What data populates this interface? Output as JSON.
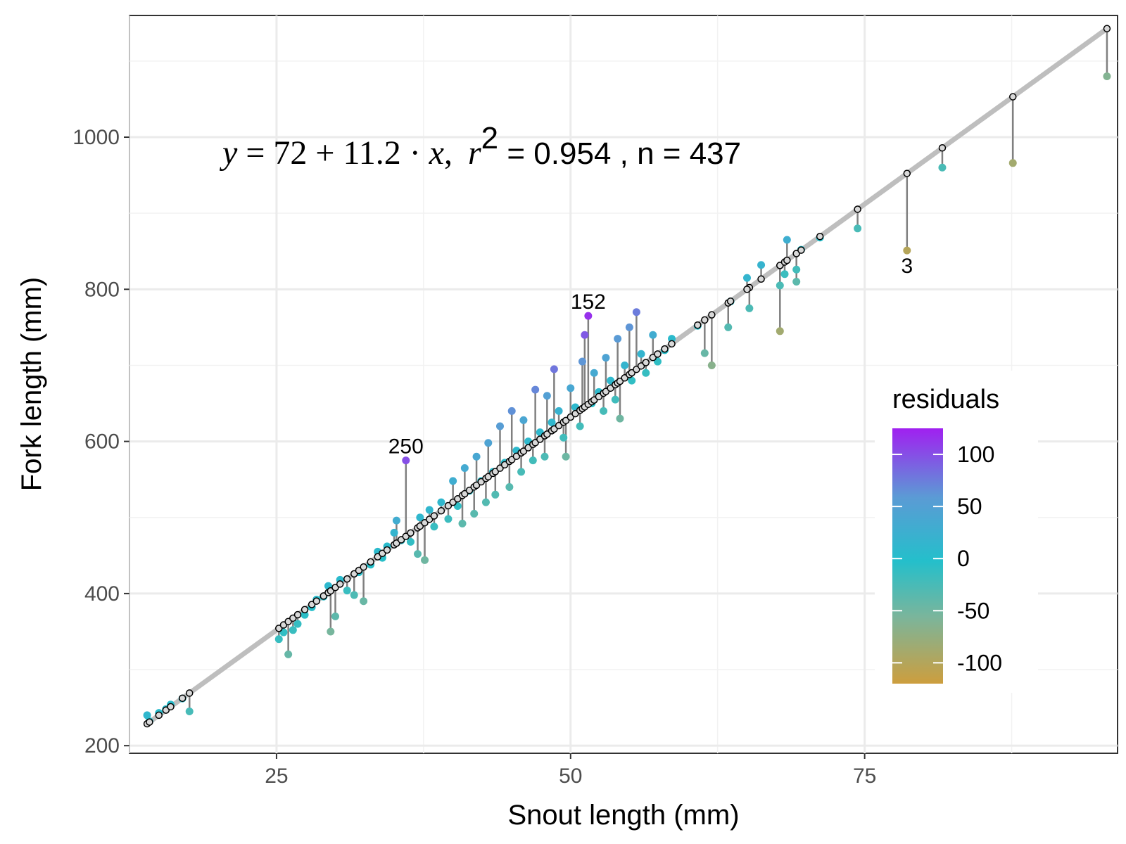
{
  "chart_data": {
    "type": "scatter",
    "xlabel": "Snout length (mm)",
    "ylabel": "Fork length (mm)",
    "xlim": [
      12.5,
      96.5
    ],
    "ylim": [
      190,
      1160
    ],
    "x_ticks": [
      "25",
      "50",
      "75"
    ],
    "x_tick_values": [
      25,
      50,
      75
    ],
    "y_ticks": [
      "200",
      "400",
      "600",
      "800",
      "1000"
    ],
    "y_tick_values": [
      200,
      400,
      600,
      800,
      1000
    ],
    "grid": true,
    "fit": {
      "intercept": 72,
      "slope": 11.2
    },
    "equation": {
      "y": "y",
      "eq": " = ",
      "intercept": "72",
      "plus": " + ",
      "slope": "11.2",
      "dot": " · ",
      "x": "x",
      "comma": ",",
      "r": "r",
      "r_sup": "2",
      "rest": " = 0.954 , n = 437"
    },
    "labeled_points": [
      {
        "label": "152",
        "x": 51.5,
        "y": 765
      },
      {
        "label": "250",
        "x": 36,
        "y": 575
      },
      {
        "label": "3",
        "x": 78.6,
        "y": 851
      }
    ],
    "legend": {
      "title": "residuals",
      "placement": "right-inside",
      "min": -120,
      "max": 125,
      "ticks": [
        "100",
        "50",
        "0",
        "-50",
        "-100"
      ],
      "tick_values": [
        100,
        50,
        0,
        -50,
        -100
      ],
      "colors": [
        "#A020F0",
        "#5B9BD5",
        "#24BFCB",
        "#7BB59B",
        "#CD9E3E"
      ]
    },
    "points": [
      [
        14,
        240
      ],
      [
        14.2,
        232
      ],
      [
        15,
        243
      ],
      [
        15.6,
        248
      ],
      [
        16,
        254
      ],
      [
        17,
        262
      ],
      [
        17.6,
        245
      ],
      [
        25.2,
        340
      ],
      [
        25.6,
        349
      ],
      [
        26,
        320
      ],
      [
        26.4,
        352
      ],
      [
        26.8,
        360
      ],
      [
        27.4,
        372
      ],
      [
        28,
        382
      ],
      [
        28.4,
        392
      ],
      [
        29,
        396
      ],
      [
        29.4,
        410
      ],
      [
        29.6,
        350
      ],
      [
        30,
        370
      ],
      [
        30.4,
        418
      ],
      [
        31,
        404
      ],
      [
        31.6,
        398
      ],
      [
        32,
        428
      ],
      [
        32.4,
        390
      ],
      [
        33,
        438
      ],
      [
        33.6,
        455
      ],
      [
        34,
        447
      ],
      [
        34.4,
        462
      ],
      [
        35,
        480
      ],
      [
        35.2,
        496
      ],
      [
        35.6,
        470
      ],
      [
        36,
        575
      ],
      [
        36.4,
        468
      ],
      [
        37,
        452
      ],
      [
        37.2,
        500
      ],
      [
        37.6,
        444
      ],
      [
        38,
        510
      ],
      [
        38.4,
        488
      ],
      [
        39,
        520
      ],
      [
        39.6,
        498
      ],
      [
        40,
        548
      ],
      [
        40.4,
        515
      ],
      [
        40.8,
        492
      ],
      [
        41,
        565
      ],
      [
        41.4,
        535
      ],
      [
        41.8,
        505
      ],
      [
        42,
        580
      ],
      [
        42.4,
        548
      ],
      [
        42.8,
        520
      ],
      [
        43,
        598
      ],
      [
        43.4,
        560
      ],
      [
        43.6,
        530
      ],
      [
        44,
        620
      ],
      [
        44.4,
        572
      ],
      [
        44.8,
        540
      ],
      [
        45,
        640
      ],
      [
        45.4,
        588
      ],
      [
        45.8,
        560
      ],
      [
        46,
        628
      ],
      [
        46.4,
        600
      ],
      [
        46.8,
        575
      ],
      [
        47,
        668
      ],
      [
        47.4,
        612
      ],
      [
        47.8,
        580
      ],
      [
        48,
        660
      ],
      [
        48.4,
        625
      ],
      [
        48.6,
        695
      ],
      [
        49,
        640
      ],
      [
        49.4,
        605
      ],
      [
        49.6,
        580
      ],
      [
        50,
        670
      ],
      [
        50.4,
        645
      ],
      [
        50.8,
        620
      ],
      [
        51,
        705
      ],
      [
        51.2,
        740
      ],
      [
        51.5,
        765
      ],
      [
        51.8,
        650
      ],
      [
        52,
        690
      ],
      [
        52.4,
        665
      ],
      [
        52.8,
        640
      ],
      [
        53,
        710
      ],
      [
        53.4,
        680
      ],
      [
        53.8,
        655
      ],
      [
        54,
        735
      ],
      [
        54.2,
        630
      ],
      [
        54.6,
        700
      ],
      [
        55,
        750
      ],
      [
        55.2,
        680
      ],
      [
        55.6,
        770
      ],
      [
        56,
        715
      ],
      [
        56.4,
        690
      ],
      [
        57,
        740
      ],
      [
        57.4,
        705
      ],
      [
        58,
        720
      ],
      [
        58.6,
        735
      ],
      [
        60.8,
        752
      ],
      [
        61.4,
        716
      ],
      [
        62,
        700
      ],
      [
        63.4,
        750
      ],
      [
        63.6,
        784
      ],
      [
        65.2,
        775
      ],
      [
        65,
        815
      ],
      [
        66.2,
        832
      ],
      [
        67.8,
        745
      ],
      [
        67.8,
        805
      ],
      [
        68.2,
        820
      ],
      [
        68.4,
        865
      ],
      [
        69.2,
        810
      ],
      [
        69.2,
        826
      ],
      [
        69.6,
        852
      ],
      [
        71.2,
        868
      ],
      [
        74.4,
        880
      ],
      [
        78.6,
        851
      ],
      [
        81.6,
        960
      ],
      [
        87.6,
        966
      ],
      [
        95.6,
        1080
      ]
    ]
  }
}
